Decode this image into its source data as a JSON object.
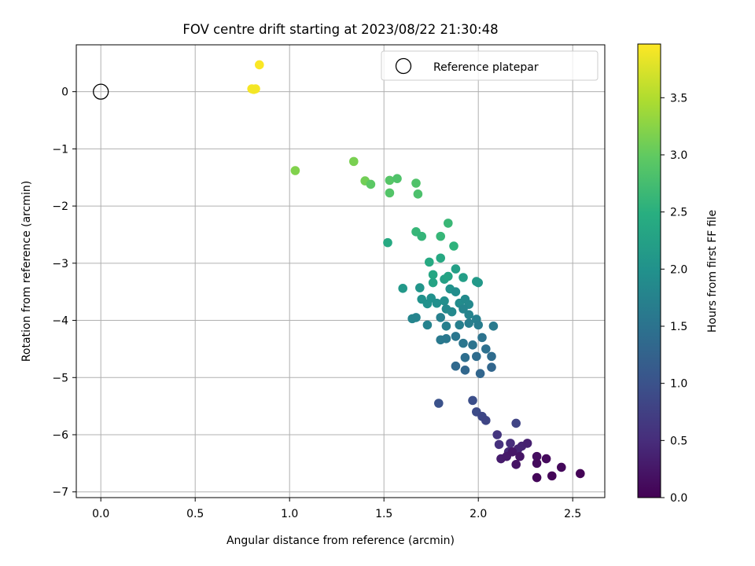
{
  "chart_data": {
    "type": "scatter",
    "title": "FOV centre drift starting at 2023/08/22 21:30:48",
    "xlabel": "Angular distance from reference (arcmin)",
    "ylabel": "Rotation from reference (arcmin)",
    "xlim": [
      -0.13,
      2.67
    ],
    "ylim": [
      -7.1,
      0.82
    ],
    "xticks": [
      0.0,
      0.5,
      1.0,
      1.5,
      2.0,
      2.5
    ],
    "xtick_labels": [
      "0.0",
      "0.5",
      "1.0",
      "1.5",
      "2.0",
      "2.5"
    ],
    "yticks": [
      0,
      -1,
      -2,
      -3,
      -4,
      -5,
      -6,
      -7
    ],
    "ytick_labels": [
      "0",
      "−1",
      "−2",
      "−3",
      "−4",
      "−5",
      "−6",
      "−7"
    ],
    "grid": true,
    "legend": {
      "placement": "top-right",
      "entries": [
        "Reference platepar"
      ]
    },
    "reference_point": {
      "x": 0.0,
      "y": 0.0
    },
    "colorbar": {
      "label": "Hours from first FF file",
      "colormap": "viridis",
      "range": [
        0.0,
        3.97
      ],
      "ticks": [
        0.0,
        0.5,
        1.0,
        1.5,
        2.0,
        2.5,
        3.0,
        3.5
      ],
      "tick_labels": [
        "0.0",
        "0.5",
        "1.0",
        "1.5",
        "2.0",
        "2.5",
        "3.0",
        "3.5"
      ]
    },
    "points": [
      [
        0.84,
        0.47,
        3.95
      ],
      [
        0.8,
        0.05,
        3.93
      ],
      [
        0.82,
        0.05,
        3.92
      ],
      [
        0.81,
        0.04,
        3.91
      ],
      [
        1.03,
        -1.38,
        3.2
      ],
      [
        1.34,
        -1.22,
        3.15
      ],
      [
        1.4,
        -1.56,
        3.1
      ],
      [
        1.43,
        -1.62,
        2.95
      ],
      [
        1.53,
        -1.55,
        2.9
      ],
      [
        1.53,
        -1.77,
        2.88
      ],
      [
        1.57,
        -1.52,
        2.85
      ],
      [
        1.67,
        -1.6,
        2.85
      ],
      [
        1.68,
        -1.79,
        2.82
      ],
      [
        1.52,
        -2.64,
        2.4
      ],
      [
        1.67,
        -2.45,
        2.62
      ],
      [
        1.7,
        -2.53,
        2.6
      ],
      [
        1.8,
        -2.53,
        2.62
      ],
      [
        1.84,
        -2.3,
        2.65
      ],
      [
        1.87,
        -2.7,
        2.55
      ],
      [
        1.74,
        -2.98,
        2.4
      ],
      [
        1.76,
        -3.2,
        2.35
      ],
      [
        1.8,
        -2.91,
        2.38
      ],
      [
        1.76,
        -3.34,
        2.3
      ],
      [
        1.82,
        -3.28,
        2.25
      ],
      [
        1.84,
        -3.23,
        2.3
      ],
      [
        1.88,
        -3.1,
        2.22
      ],
      [
        1.92,
        -3.25,
        2.2
      ],
      [
        1.99,
        -3.32,
        2.15
      ],
      [
        2.0,
        -3.34,
        2.1
      ],
      [
        1.6,
        -3.44,
        2.1
      ],
      [
        1.69,
        -3.43,
        2.05
      ],
      [
        1.7,
        -3.63,
        2.0
      ],
      [
        1.73,
        -3.71,
        2.0
      ],
      [
        1.75,
        -3.61,
        1.98
      ],
      [
        1.78,
        -3.7,
        1.95
      ],
      [
        1.82,
        -3.66,
        1.95
      ],
      [
        1.85,
        -3.45,
        2.0
      ],
      [
        1.88,
        -3.5,
        1.92
      ],
      [
        1.9,
        -3.7,
        1.9
      ],
      [
        1.93,
        -3.63,
        1.88
      ],
      [
        1.95,
        -3.72,
        1.85
      ],
      [
        1.83,
        -3.8,
        1.88
      ],
      [
        1.86,
        -3.85,
        1.85
      ],
      [
        1.92,
        -3.8,
        1.8
      ],
      [
        1.95,
        -3.9,
        1.78
      ],
      [
        1.65,
        -3.97,
        1.8
      ],
      [
        1.67,
        -3.95,
        1.78
      ],
      [
        1.73,
        -4.08,
        1.75
      ],
      [
        1.8,
        -3.95,
        1.72
      ],
      [
        1.83,
        -4.1,
        1.7
      ],
      [
        1.9,
        -4.08,
        1.7
      ],
      [
        1.95,
        -4.05,
        1.68
      ],
      [
        1.99,
        -3.98,
        1.7
      ],
      [
        2.0,
        -4.08,
        1.65
      ],
      [
        2.08,
        -4.1,
        1.62
      ],
      [
        1.8,
        -4.34,
        1.6
      ],
      [
        1.83,
        -4.32,
        1.58
      ],
      [
        1.88,
        -4.28,
        1.55
      ],
      [
        1.92,
        -4.4,
        1.55
      ],
      [
        1.97,
        -4.43,
        1.5
      ],
      [
        2.02,
        -4.3,
        1.5
      ],
      [
        2.04,
        -4.5,
        1.45
      ],
      [
        1.93,
        -4.65,
        1.42
      ],
      [
        1.99,
        -4.63,
        1.4
      ],
      [
        2.07,
        -4.63,
        1.4
      ],
      [
        1.88,
        -4.8,
        1.35
      ],
      [
        1.93,
        -4.87,
        1.32
      ],
      [
        2.01,
        -4.93,
        1.3
      ],
      [
        2.07,
        -4.82,
        1.3
      ],
      [
        1.79,
        -5.45,
        1.0
      ],
      [
        1.97,
        -5.4,
        0.95
      ],
      [
        1.99,
        -5.6,
        0.9
      ],
      [
        2.02,
        -5.68,
        0.85
      ],
      [
        2.04,
        -5.75,
        0.82
      ],
      [
        2.2,
        -5.8,
        0.8
      ],
      [
        2.1,
        -6.0,
        0.6
      ],
      [
        2.11,
        -6.17,
        0.55
      ],
      [
        2.17,
        -6.15,
        0.5
      ],
      [
        2.16,
        -6.3,
        0.45
      ],
      [
        2.21,
        -6.25,
        0.4
      ],
      [
        2.23,
        -6.2,
        0.4
      ],
      [
        2.26,
        -6.15,
        0.35
      ],
      [
        2.12,
        -6.42,
        0.3
      ],
      [
        2.15,
        -6.38,
        0.28
      ],
      [
        2.18,
        -6.3,
        0.25
      ],
      [
        2.22,
        -6.38,
        0.22
      ],
      [
        2.2,
        -6.52,
        0.2
      ],
      [
        2.31,
        -6.38,
        0.15
      ],
      [
        2.31,
        -6.5,
        0.12
      ],
      [
        2.36,
        -6.42,
        0.1
      ],
      [
        2.44,
        -6.57,
        0.08
      ],
      [
        2.31,
        -6.75,
        0.06
      ],
      [
        2.39,
        -6.72,
        0.04
      ],
      [
        2.54,
        -6.68,
        0.02
      ]
    ]
  }
}
